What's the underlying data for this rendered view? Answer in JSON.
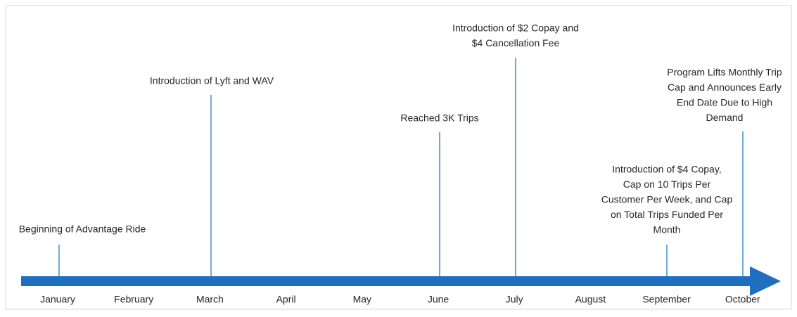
{
  "months": [
    "January",
    "February",
    "March",
    "April",
    "May",
    "June",
    "July",
    "August",
    "September",
    "October"
  ],
  "events": [
    {
      "lines": [
        "Beginning of Advantage Ride"
      ]
    },
    {
      "lines": [
        "Introduction of Lyft and WAV"
      ]
    },
    {
      "lines": [
        "Reached 3K Trips"
      ]
    },
    {
      "lines": [
        "Introduction of $2 Copay and",
        "$4 Cancellation Fee"
      ]
    },
    {
      "lines": [
        "Introduction of $4 Copay,",
        "Cap on 10 Trips Per",
        "Customer Per Week, and Cap",
        "on Total Trips Funded Per",
        "Month"
      ]
    },
    {
      "lines": [
        "Program Lifts Monthly Trip",
        "Cap and Announces Early",
        "End Date Due to High",
        "Demand"
      ]
    }
  ]
}
